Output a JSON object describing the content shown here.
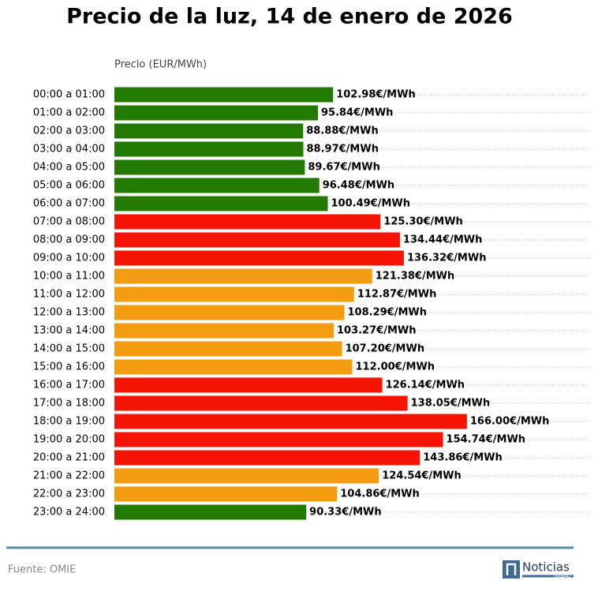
{
  "chart_data": {
    "type": "bar",
    "orientation": "horizontal",
    "title": "Precio de la luz, 14 de enero de 2026",
    "x_label": "Precio (EUR/MWh)",
    "source": "Fuente: OMIE",
    "categories": [
      "00:00 a 01:00",
      "01:00 a 02:00",
      "02:00 a 03:00",
      "03:00 a 04:00",
      "04:00 a 05:00",
      "05:00 a 06:00",
      "06:00 a 07:00",
      "07:00 a 08:00",
      "08:00 a 09:00",
      "09:00 a 10:00",
      "10:00 a 11:00",
      "11:00 a 12:00",
      "12:00 a 13:00",
      "13:00 a 14:00",
      "14:00 a 15:00",
      "15:00 a 16:00",
      "16:00 a 17:00",
      "17:00 a 18:00",
      "18:00 a 19:00",
      "19:00 a 20:00",
      "20:00 a 21:00",
      "21:00 a 22:00",
      "22:00 a 23:00",
      "23:00 a 24:00"
    ],
    "values": [
      102.98,
      95.84,
      88.88,
      88.97,
      89.67,
      96.48,
      100.49,
      125.3,
      134.44,
      136.32,
      121.38,
      112.87,
      108.29,
      103.27,
      107.2,
      112.0,
      126.14,
      138.05,
      166.0,
      154.74,
      143.86,
      124.54,
      104.86,
      90.33
    ],
    "value_labels": [
      "102.98€/MWh",
      "95.84€/MWh",
      "88.88€/MWh",
      "88.97€/MWh",
      "89.67€/MWh",
      "96.48€/MWh",
      "100.49€/MWh",
      "125.30€/MWh",
      "134.44€/MWh",
      "136.32€/MWh",
      "121.38€/MWh",
      "112.87€/MWh",
      "108.29€/MWh",
      "103.27€/MWh",
      "107.20€/MWh",
      "112.00€/MWh",
      "126.14€/MWh",
      "138.05€/MWh",
      "166.00€/MWh",
      "154.74€/MWh",
      "143.86€/MWh",
      "124.54€/MWh",
      "104.86€/MWh",
      "90.33€/MWh"
    ],
    "colors": [
      "#237a00",
      "#237a00",
      "#237a00",
      "#237a00",
      "#237a00",
      "#237a00",
      "#237a00",
      "#f61405",
      "#f61405",
      "#f61405",
      "#f39c12",
      "#f39c12",
      "#f39c12",
      "#f39c12",
      "#f39c12",
      "#f39c12",
      "#f61405",
      "#f61405",
      "#f61405",
      "#f61405",
      "#f61405",
      "#f39c12",
      "#f39c12",
      "#237a00"
    ],
    "xlim": [
      0,
      224
    ],
    "logo": {
      "name": "Noticias",
      "tagline": "TRABAJO"
    }
  }
}
